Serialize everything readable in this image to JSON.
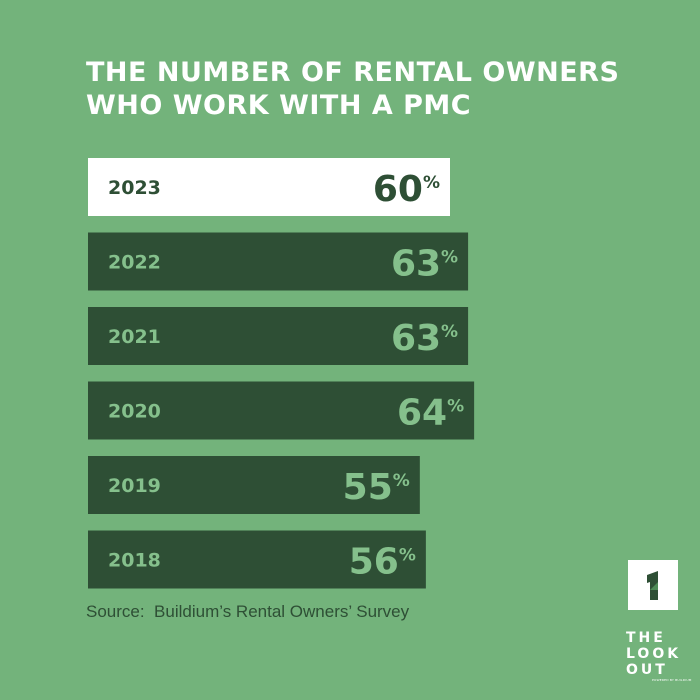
{
  "chart_data": {
    "type": "bar",
    "orientation": "horizontal",
    "title_lines": [
      "THE NUMBER OF RENTAL OWNERS",
      "WHO WORK WITH A PMC"
    ],
    "categories": [
      "2023",
      "2022",
      "2021",
      "2020",
      "2019",
      "2018"
    ],
    "values": [
      60,
      63,
      63,
      64,
      55,
      56
    ],
    "value_suffix": "%",
    "highlight_category": "2023",
    "grid": false,
    "legend": "none"
  },
  "source_note": "Source:  Buildium’s Rental Owners’ Survey",
  "branding": {
    "logo_icon": "lookout-arrow-icon",
    "logo_lines": [
      "THE",
      "LOOK",
      "OUT"
    ],
    "tagline": "POWERED BY BUILDIUM"
  },
  "colors": {
    "background": "#73b37b",
    "bar": "#2e4f35",
    "highlight_bar": "#ffffff",
    "bar_label": "#85c08c",
    "highlight_label": "#2e4f35",
    "title": "#ffffff"
  }
}
